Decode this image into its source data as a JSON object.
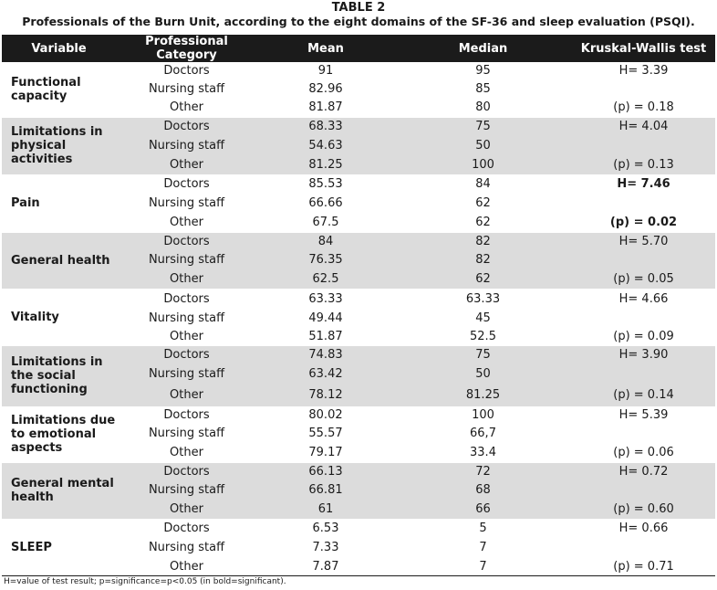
{
  "caption": {
    "title": "TABLE 2",
    "subtitle": "Professionals of the Burn Unit, according to the eight domains of the SF-36 and sleep evaluation (PSQI)."
  },
  "headers": [
    "Variable",
    "Professional Category",
    "Mean",
    "Median",
    "Kruskal-Wallis test"
  ],
  "groups": [
    {
      "variable": "Functional capacity",
      "rows": [
        {
          "category": "Doctors",
          "mean": "91",
          "median": "95",
          "kw": "H= 3.39",
          "kw_bold": false
        },
        {
          "category": "Nursing staff",
          "mean": "82.96",
          "median": "85",
          "kw": "",
          "kw_bold": false
        },
        {
          "category": "Other",
          "mean": "81.87",
          "median": "80",
          "kw": "(p) = 0.18",
          "kw_bold": false
        }
      ]
    },
    {
      "variable": "Limitations in physical activities",
      "rows": [
        {
          "category": "Doctors",
          "mean": "68.33",
          "median": "75",
          "kw": "H= 4.04",
          "kw_bold": false
        },
        {
          "category": "Nursing staff",
          "mean": "54.63",
          "median": "50",
          "kw": "",
          "kw_bold": false
        },
        {
          "category": "Other",
          "mean": "81.25",
          "median": "100",
          "kw": "(p) = 0.13",
          "kw_bold": false
        }
      ]
    },
    {
      "variable": "Pain",
      "rows": [
        {
          "category": "Doctors",
          "mean": "85.53",
          "median": "84",
          "kw": "H= 7.46",
          "kw_bold": true
        },
        {
          "category": "Nursing staff",
          "mean": "66.66",
          "median": "62",
          "kw": "",
          "kw_bold": false
        },
        {
          "category": "Other",
          "mean": "67.5",
          "median": "62",
          "kw": "(p) = 0.02",
          "kw_bold": true
        }
      ]
    },
    {
      "variable": "General health",
      "rows": [
        {
          "category": "Doctors",
          "mean": "84",
          "median": "82",
          "kw": "H= 5.70",
          "kw_bold": false
        },
        {
          "category": "Nursing staff",
          "mean": "76.35",
          "median": "82",
          "kw": "",
          "kw_bold": false
        },
        {
          "category": "Other",
          "mean": "62.5",
          "median": "62",
          "kw": "(p) = 0.05",
          "kw_bold": false
        }
      ]
    },
    {
      "variable": "Vitality",
      "rows": [
        {
          "category": "Doctors",
          "mean": "63.33",
          "median": "63.33",
          "kw": "H= 4.66",
          "kw_bold": false
        },
        {
          "category": "Nursing staff",
          "mean": "49.44",
          "median": "45",
          "kw": "",
          "kw_bold": false
        },
        {
          "category": "Other",
          "mean": "51.87",
          "median": "52.5",
          "kw": "(p) = 0.09",
          "kw_bold": false
        }
      ]
    },
    {
      "variable": "Limitations in the social functioning",
      "rows": [
        {
          "category": "Doctors",
          "mean": "74.83",
          "median": "75",
          "kw": "H= 3.90",
          "kw_bold": false
        },
        {
          "category": "Nursing staff",
          "mean": "63.42",
          "median": "50",
          "kw": "",
          "kw_bold": false
        },
        {
          "category": "Other",
          "mean": "78.12",
          "median": "81.25",
          "kw": "(p) = 0.14",
          "kw_bold": false
        }
      ]
    },
    {
      "variable": "Limitations due to emotional aspects",
      "rows": [
        {
          "category": "Doctors",
          "mean": "80.02",
          "median": "100",
          "kw": "H= 5.39",
          "kw_bold": false
        },
        {
          "category": "Nursing staff",
          "mean": "55.57",
          "median": "66,7",
          "kw": "",
          "kw_bold": false
        },
        {
          "category": "Other",
          "mean": "79.17",
          "median": "33.4",
          "kw": "(p) = 0.06",
          "kw_bold": false
        }
      ]
    },
    {
      "variable": "General mental health",
      "rows": [
        {
          "category": "Doctors",
          "mean": "66.13",
          "median": "72",
          "kw": "H= 0.72",
          "kw_bold": false
        },
        {
          "category": "Nursing staff",
          "mean": "66.81",
          "median": "68",
          "kw": "",
          "kw_bold": false
        },
        {
          "category": "Other",
          "mean": "61",
          "median": "66",
          "kw": "(p) = 0.60",
          "kw_bold": false
        }
      ]
    },
    {
      "variable": "SLEEP",
      "rows": [
        {
          "category": "Doctors",
          "mean": "6.53",
          "median": "5",
          "kw": "H= 0.66",
          "kw_bold": false
        },
        {
          "category": "Nursing staff",
          "mean": "7.33",
          "median": "7",
          "kw": "",
          "kw_bold": false
        },
        {
          "category": "Other",
          "mean": "7.87",
          "median": "7",
          "kw": "(p) = 0.71",
          "kw_bold": false
        }
      ]
    }
  ],
  "footnote": "H=value of test result; p=significance=p<0.05 (in bold=significant).",
  "chart_data": {
    "type": "table",
    "title": "TABLE 2",
    "columns": [
      "Variable",
      "Professional Category",
      "Mean",
      "Median",
      "Kruskal-Wallis test"
    ],
    "rows": [
      [
        "Functional capacity",
        "Doctors",
        91,
        95,
        "H= 3.39"
      ],
      [
        "Functional capacity",
        "Nursing staff",
        82.96,
        85,
        ""
      ],
      [
        "Functional capacity",
        "Other",
        81.87,
        80,
        "(p) = 0.18"
      ],
      [
        "Limitations in physical activities",
        "Doctors",
        68.33,
        75,
        "H= 4.04"
      ],
      [
        "Limitations in physical activities",
        "Nursing staff",
        54.63,
        50,
        ""
      ],
      [
        "Limitations in physical activities",
        "Other",
        81.25,
        100,
        "(p) = 0.13"
      ],
      [
        "Pain",
        "Doctors",
        85.53,
        84,
        "H= 7.46"
      ],
      [
        "Pain",
        "Nursing staff",
        66.66,
        62,
        ""
      ],
      [
        "Pain",
        "Other",
        67.5,
        62,
        "(p) = 0.02"
      ],
      [
        "General health",
        "Doctors",
        84,
        82,
        "H= 5.70"
      ],
      [
        "General health",
        "Nursing staff",
        76.35,
        82,
        ""
      ],
      [
        "General health",
        "Other",
        62.5,
        62,
        "(p) = 0.05"
      ],
      [
        "Vitality",
        "Doctors",
        63.33,
        63.33,
        "H= 4.66"
      ],
      [
        "Vitality",
        "Nursing staff",
        49.44,
        45,
        ""
      ],
      [
        "Vitality",
        "Other",
        51.87,
        52.5,
        "(p) = 0.09"
      ],
      [
        "Limitations in the social functioning",
        "Doctors",
        74.83,
        75,
        "H= 3.90"
      ],
      [
        "Limitations in the social functioning",
        "Nursing staff",
        63.42,
        50,
        ""
      ],
      [
        "Limitations in the social functioning",
        "Other",
        78.12,
        81.25,
        "(p) = 0.14"
      ],
      [
        "Limitations due to emotional aspects",
        "Doctors",
        80.02,
        100,
        "H= 5.39"
      ],
      [
        "Limitations due to emotional aspects",
        "Nursing staff",
        55.57,
        "66,7",
        ""
      ],
      [
        "Limitations due to emotional aspects",
        "Other",
        79.17,
        33.4,
        "(p) = 0.06"
      ],
      [
        "General mental health",
        "Doctors",
        66.13,
        72,
        "H= 0.72"
      ],
      [
        "General mental health",
        "Nursing staff",
        66.81,
        68,
        ""
      ],
      [
        "General mental health",
        "Other",
        61,
        66,
        "(p) = 0.60"
      ],
      [
        "SLEEP",
        "Doctors",
        6.53,
        5,
        "H= 0.66"
      ],
      [
        "SLEEP",
        "Nursing staff",
        7.33,
        7,
        ""
      ],
      [
        "SLEEP",
        "Other",
        7.87,
        7,
        "(p) = 0.71"
      ]
    ]
  }
}
